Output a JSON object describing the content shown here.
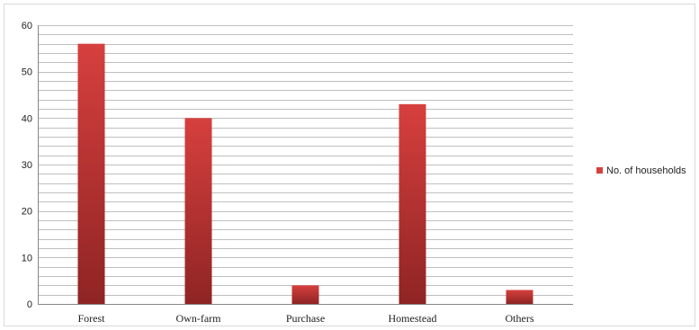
{
  "chart_data": {
    "type": "bar",
    "categories": [
      "Forest",
      "Own-farm",
      "Purchase",
      "Homestead",
      "Others"
    ],
    "series": [
      {
        "name": "No. of households",
        "values": [
          56,
          40,
          4,
          43,
          3
        ]
      }
    ],
    "yticks": [
      "0",
      "10",
      "20",
      "30",
      "40",
      "50",
      "60"
    ],
    "ylim": [
      0,
      60
    ],
    "minor_grid_step": 2,
    "grid": true,
    "legend": "right",
    "title": "",
    "xlabel": "",
    "ylabel": "",
    "colors": {
      "bar_top": "#d6403e",
      "bar_bottom": "#8f2424",
      "grid": "#bfbfbf",
      "axis": "#868686"
    }
  }
}
